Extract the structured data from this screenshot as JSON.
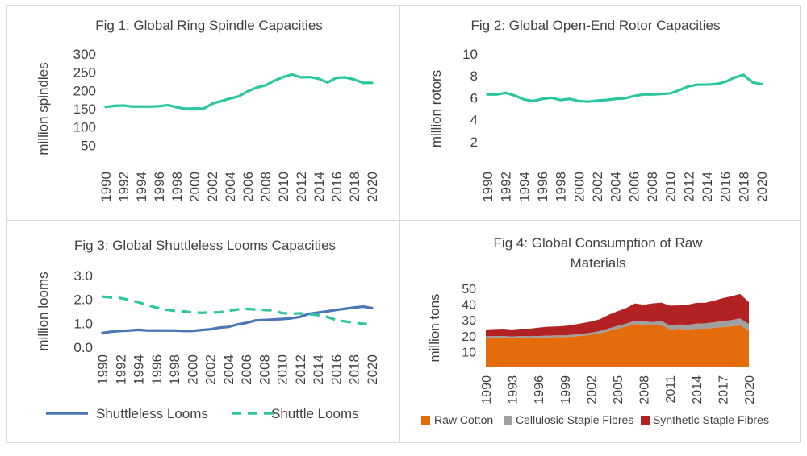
{
  "colors": {
    "teal": "#2bc6a0",
    "blue": "#4a76b5",
    "cotton": "#e46c0a",
    "cellulosic": "#a0a0a0",
    "synthetic": "#b22222",
    "text": "#404040"
  },
  "chart_data": [
    {
      "id": "fig1",
      "type": "line",
      "title": "Fig 1: Global Ring Spindle Capacities",
      "ylabel": "million spindles",
      "xlabel": "",
      "ylim": [
        0,
        300
      ],
      "yticks": [
        "50",
        "100",
        "150",
        "200",
        "250",
        "300"
      ],
      "x": [
        1990,
        1991,
        1992,
        1993,
        1994,
        1995,
        1996,
        1997,
        1998,
        1999,
        2000,
        2001,
        2002,
        2003,
        2004,
        2005,
        2006,
        2007,
        2008,
        2009,
        2010,
        2011,
        2012,
        2013,
        2014,
        2015,
        2016,
        2017,
        2018,
        2019,
        2020
      ],
      "xticks": [
        "1990",
        "1992",
        "1994",
        "1996",
        "1998",
        "2000",
        "2002",
        "2004",
        "2006",
        "2008",
        "2010",
        "2012",
        "2014",
        "2016",
        "2018",
        "2020"
      ],
      "series": [
        {
          "color": "#2bc6a0",
          "dash": "solid",
          "values": [
            155,
            158,
            159,
            156,
            156,
            156,
            157,
            160,
            154,
            150,
            151,
            150,
            164,
            171,
            178,
            184,
            198,
            208,
            214,
            227,
            237,
            244,
            236,
            237,
            232,
            222,
            235,
            236,
            230,
            221,
            221
          ]
        }
      ]
    },
    {
      "id": "fig2",
      "type": "line",
      "title": "Fig 2: Global Open-End Rotor Capacities",
      "ylabel": "million rotors",
      "xlabel": "",
      "ylim": [
        0,
        10
      ],
      "yticks": [
        "2",
        "4",
        "6",
        "8",
        "10"
      ],
      "x": [
        1990,
        1991,
        1992,
        1993,
        1994,
        1995,
        1996,
        1997,
        1998,
        1999,
        2000,
        2001,
        2002,
        2003,
        2004,
        2005,
        2006,
        2007,
        2008,
        2009,
        2010,
        2011,
        2012,
        2013,
        2014,
        2015,
        2016,
        2017,
        2018,
        2019,
        2020
      ],
      "xticks": [
        "1990",
        "1992",
        "1994",
        "1996",
        "1998",
        "2000",
        "2002",
        "2004",
        "2006",
        "2008",
        "2010",
        "2012",
        "2014",
        "2016",
        "2018",
        "2020"
      ],
      "series": [
        {
          "color": "#2bc6a0",
          "dash": "solid",
          "values": [
            6.3,
            6.3,
            6.45,
            6.2,
            5.85,
            5.7,
            5.9,
            6.0,
            5.8,
            5.9,
            5.7,
            5.65,
            5.75,
            5.8,
            5.9,
            5.95,
            6.15,
            6.3,
            6.3,
            6.35,
            6.4,
            6.7,
            7.05,
            7.2,
            7.2,
            7.25,
            7.45,
            7.85,
            8.1,
            7.4,
            7.25
          ]
        }
      ]
    },
    {
      "id": "fig3",
      "type": "line",
      "title": "Fig 3: Global Shuttleless Looms Capacities",
      "ylabel": "million looms",
      "xlabel": "",
      "ylim": [
        0,
        3.0
      ],
      "yticks": [
        "0.0",
        "1.0",
        "2.0",
        "3.0"
      ],
      "x": [
        1990,
        1991,
        1992,
        1993,
        1994,
        1995,
        1996,
        1997,
        1998,
        1999,
        2000,
        2001,
        2002,
        2003,
        2004,
        2005,
        2006,
        2007,
        2008,
        2009,
        2010,
        2011,
        2012,
        2013,
        2014,
        2015,
        2016,
        2017,
        2018,
        2019,
        2020
      ],
      "xticks": [
        "1990",
        "1992",
        "1994",
        "1996",
        "1998",
        "2000",
        "2002",
        "2004",
        "2006",
        "2008",
        "2010",
        "2012",
        "2014",
        "2016",
        "2018",
        "2020"
      ],
      "legend": [
        "Shuttleless Looms",
        "Shuttle Looms"
      ],
      "series": [
        {
          "name": "Shuttleless Looms",
          "color": "#4a76b5",
          "dash": "solid",
          "values": [
            0.6,
            0.65,
            0.68,
            0.7,
            0.73,
            0.7,
            0.7,
            0.7,
            0.7,
            0.68,
            0.68,
            0.72,
            0.75,
            0.82,
            0.85,
            0.95,
            1.02,
            1.12,
            1.14,
            1.16,
            1.18,
            1.21,
            1.27,
            1.4,
            1.45,
            1.5,
            1.56,
            1.61,
            1.66,
            1.7,
            1.64
          ]
        },
        {
          "name": "Shuttle Looms",
          "color": "#2bc6a0",
          "dash": "dashed",
          "values": [
            2.12,
            2.08,
            2.06,
            1.98,
            1.88,
            1.76,
            1.66,
            1.58,
            1.52,
            1.5,
            1.46,
            1.44,
            1.46,
            1.46,
            1.52,
            1.58,
            1.6,
            1.58,
            1.56,
            1.54,
            1.43,
            1.4,
            1.42,
            1.38,
            1.34,
            1.27,
            1.14,
            1.08,
            1.03,
            0.98,
            0.98
          ]
        }
      ]
    },
    {
      "id": "fig4",
      "type": "area",
      "title": "Fig 4: Global Consumption of Raw Materials",
      "title_lines": [
        "Fig 4: Global Consumption of Raw",
        "Materials"
      ],
      "ylabel": "million tons",
      "xlabel": "",
      "ylim": [
        0,
        50
      ],
      "yticks": [
        "10",
        "20",
        "30",
        "40",
        "50"
      ],
      "x": [
        1990,
        1991,
        1992,
        1993,
        1994,
        1995,
        1996,
        1997,
        1998,
        1999,
        2000,
        2001,
        2002,
        2003,
        2004,
        2005,
        2006,
        2007,
        2008,
        2009,
        2010,
        2011,
        2012,
        2013,
        2014,
        2015,
        2016,
        2017,
        2018,
        2019,
        2020
      ],
      "xticks": [
        "1990",
        "1993",
        "1996",
        "1999",
        "2002",
        "2005",
        "2008",
        "2011",
        "2014",
        "2017",
        "2020"
      ],
      "stacked": true,
      "legend": [
        "Raw Cotton",
        "Cellulosic Staple Fibres",
        "Synthetic Staple Fibres"
      ],
      "series": [
        {
          "name": "Raw Cotton",
          "color": "#e46c0a",
          "values": [
            18.5,
            18.7,
            18.8,
            18.5,
            18.8,
            18.6,
            18.8,
            19.0,
            19.2,
            19.2,
            19.5,
            20.0,
            20.7,
            21.5,
            23.0,
            24.5,
            25.8,
            27.5,
            27.0,
            26.5,
            27.0,
            24.0,
            24.5,
            24.0,
            24.5,
            24.5,
            25.0,
            25.5,
            26.0,
            26.5,
            23.5
          ]
        },
        {
          "name": "Cellulosic Staple Fibres",
          "color": "#a0a0a0",
          "values": [
            1.2,
            1.2,
            1.1,
            1.0,
            1.1,
            1.1,
            1.1,
            1.1,
            1.1,
            1.1,
            1.2,
            1.2,
            1.3,
            1.5,
            1.6,
            1.8,
            1.9,
            2.0,
            2.1,
            2.2,
            2.4,
            2.5,
            2.7,
            3.0,
            3.2,
            3.4,
            3.6,
            3.8,
            4.0,
            4.5,
            4.0
          ]
        },
        {
          "name": "Synthetic Staple Fibres",
          "color": "#b22222",
          "values": [
            4.3,
            4.4,
            4.6,
            4.5,
            4.6,
            4.8,
            5.2,
            5.6,
            5.6,
            5.9,
            6.3,
            6.8,
            7.0,
            7.5,
            8.7,
            9.2,
            9.8,
            11.0,
            10.6,
            11.8,
            11.6,
            12.6,
            12.0,
            12.6,
            13.2,
            13.0,
            13.6,
            14.5,
            15.0,
            15.5,
            13.8
          ]
        }
      ]
    }
  ]
}
